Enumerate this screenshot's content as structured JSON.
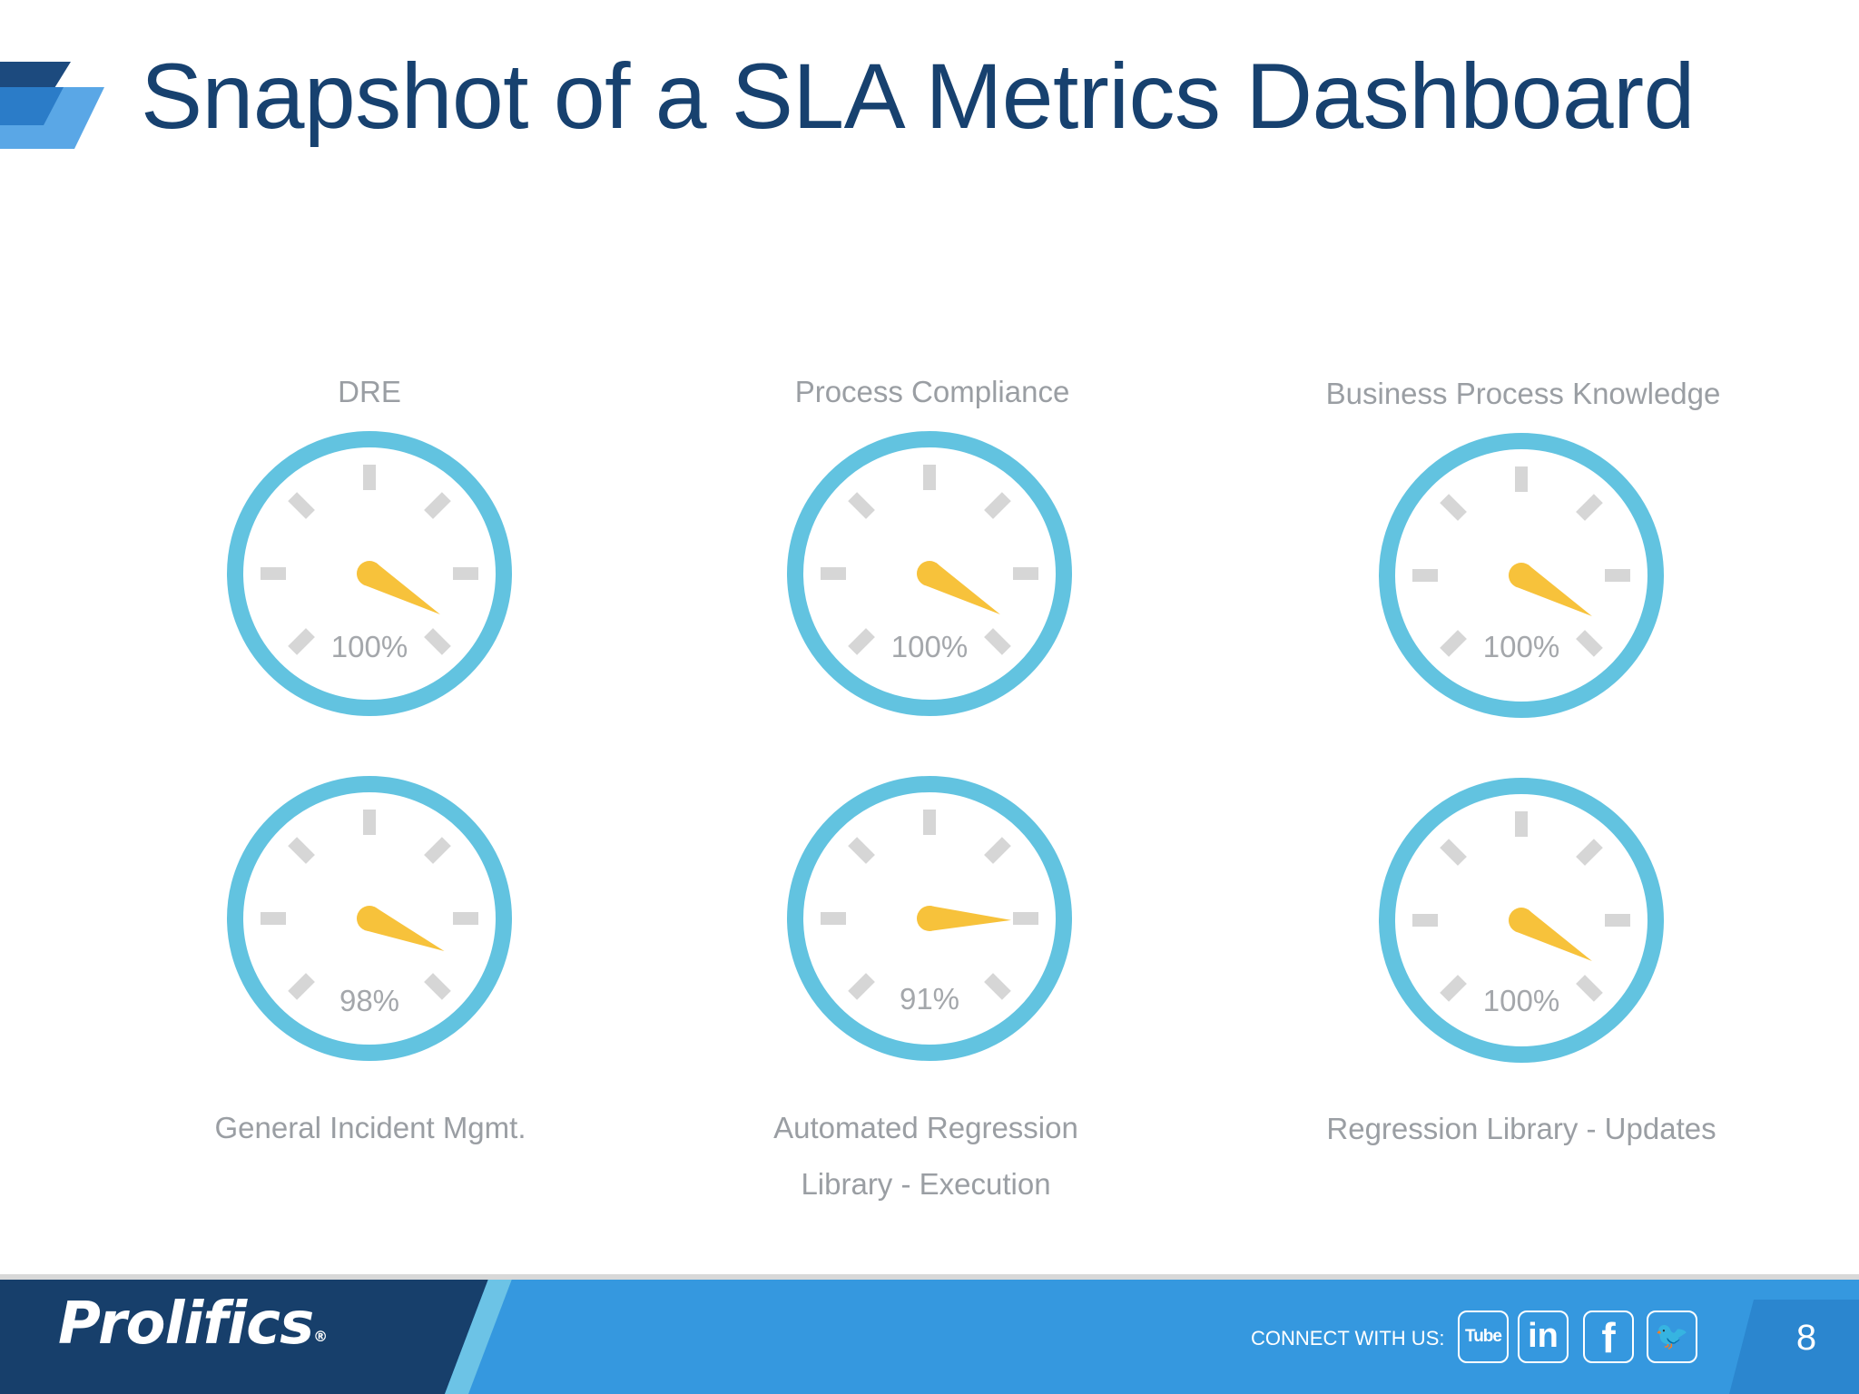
{
  "slide": {
    "title": "Snapshot of a SLA Metrics Dashboard",
    "page_number": "8"
  },
  "chart_data": [
    {
      "type": "gauge",
      "label": "DRE",
      "value": 100,
      "value_label": "100%"
    },
    {
      "type": "gauge",
      "label": "Process Compliance",
      "value": 100,
      "value_label": "100%"
    },
    {
      "type": "gauge",
      "label": "Business Process Knowledge",
      "value": 100,
      "value_label": "100%"
    },
    {
      "type": "gauge",
      "label": "General Incident Mgmt.",
      "value": 98,
      "value_label": "98%"
    },
    {
      "type": "gauge",
      "label_lines": [
        "Automated Regression",
        "Library - Execution"
      ],
      "value": 91,
      "value_label": "91%"
    },
    {
      "type": "gauge",
      "label": "Regression Library - Updates",
      "value": 100,
      "value_label": "100%"
    }
  ],
  "footer": {
    "brand": "Prolifics",
    "brand_mark": "®",
    "connect_label": "CONNECT WITH US:",
    "social": [
      {
        "icon": "youtube-icon",
        "glyph": "Tube"
      },
      {
        "icon": "linkedin-icon",
        "glyph": "in"
      },
      {
        "icon": "facebook-icon",
        "glyph": "f"
      },
      {
        "icon": "twitter-icon",
        "glyph": "🐦"
      }
    ]
  },
  "colors": {
    "title": "#17416f",
    "gauge_ring": "#62c3e0",
    "gauge_needle": "#f7c23b",
    "gauge_tick": "#d6d6d6",
    "footer_dark": "#173f6b",
    "footer_blue": "#3598df"
  }
}
